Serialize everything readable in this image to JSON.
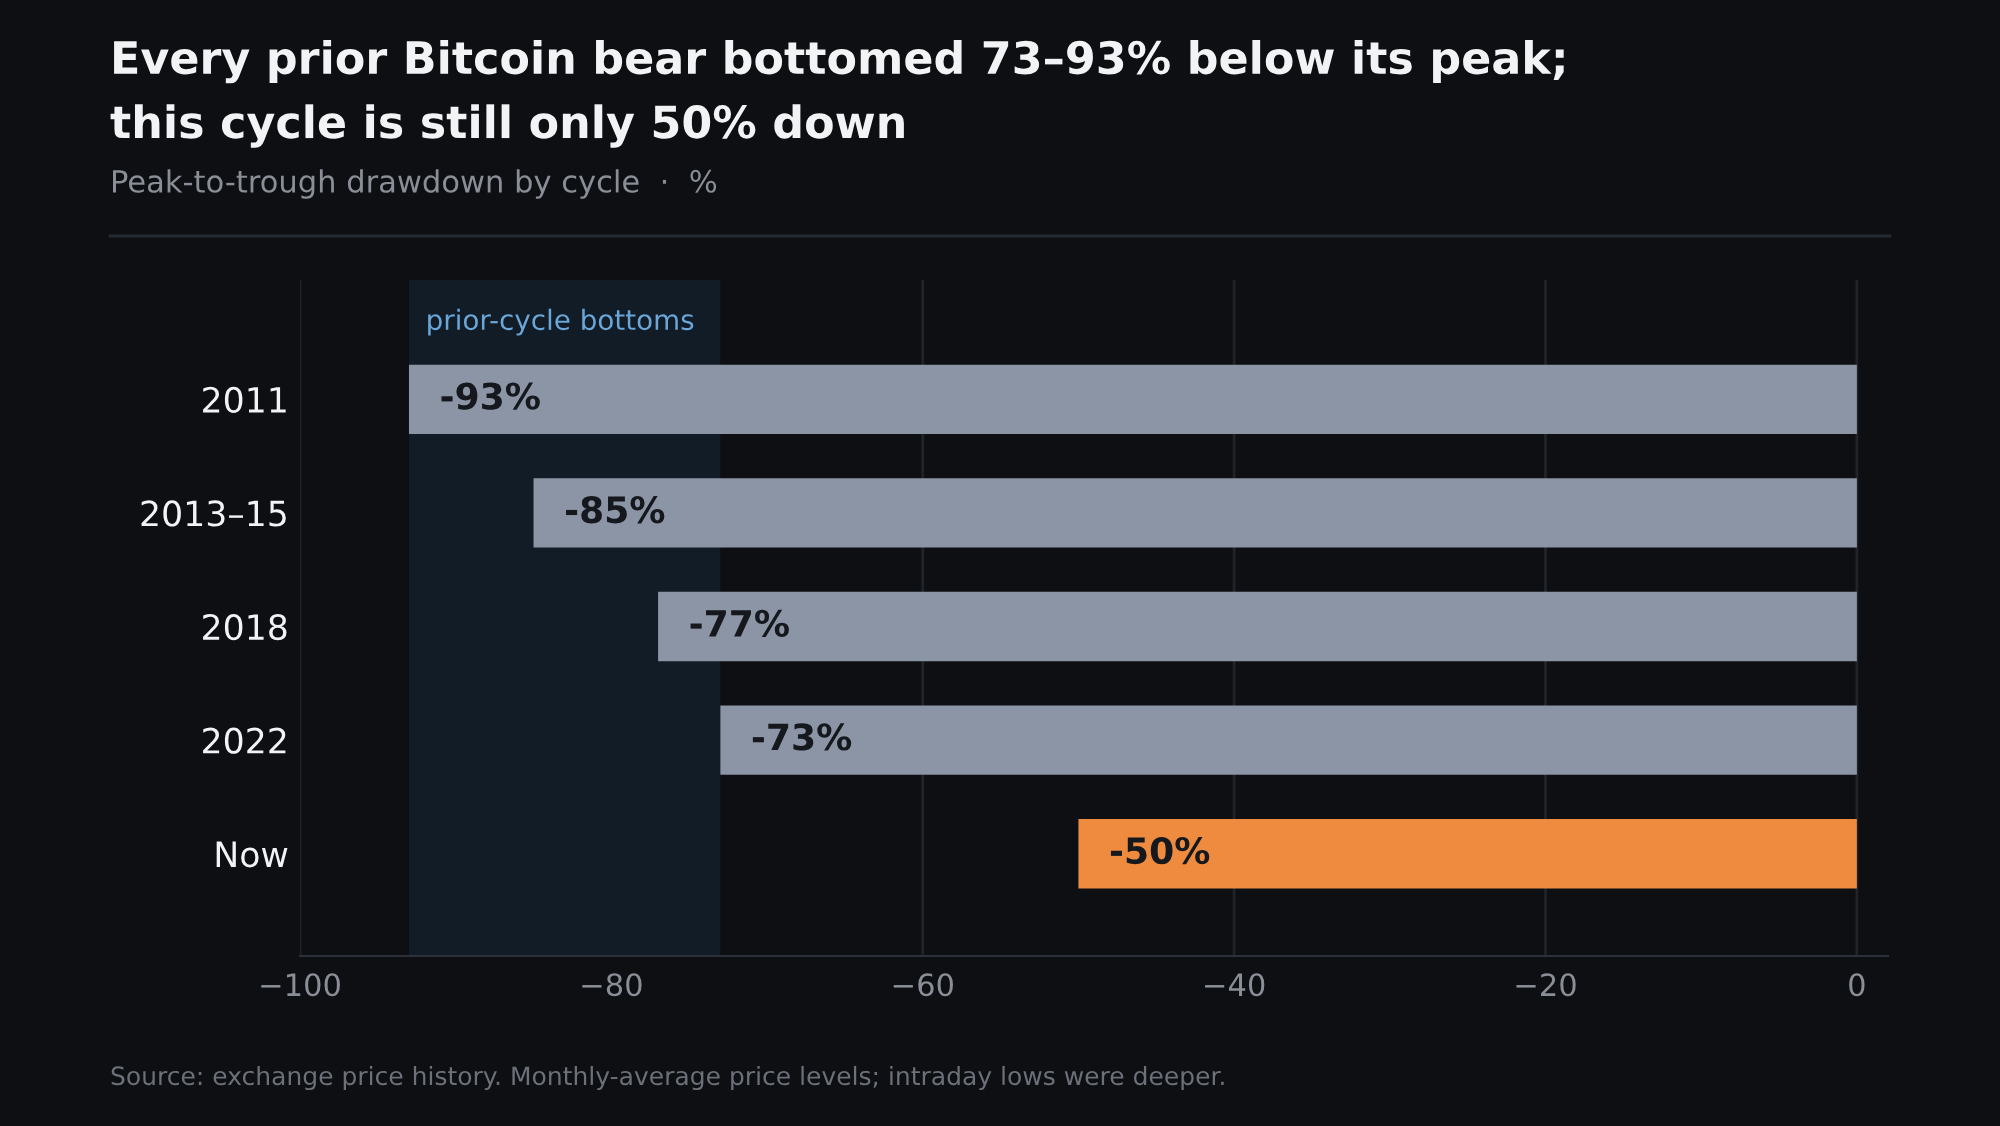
{
  "chart_data": {
    "type": "bar",
    "orientation": "horizontal",
    "title": "Every prior Bitcoin bear bottomed 73–93% below its peak;\nthis cycle is still only 50% down",
    "subtitle": "Peak-to-trough drawdown by cycle  ·  %",
    "categories": [
      "2011",
      "2013–15",
      "2018",
      "2022",
      "Now"
    ],
    "values": [
      -93,
      -85,
      -77,
      -73,
      -50
    ],
    "colors": [
      "#8b95a5",
      "#8b95a5",
      "#8b95a5",
      "#8b95a5",
      "#ef8b3f"
    ],
    "value_labels": [
      "-93%",
      "-85%",
      "-77%",
      "-73%",
      "-50%"
    ],
    "xlim": [
      -100,
      2
    ],
    "xticks": [
      {
        "value": -100,
        "label": "−100"
      },
      {
        "value": -80,
        "label": "−80"
      },
      {
        "value": -60,
        "label": "−60"
      },
      {
        "value": -40,
        "label": "−40"
      },
      {
        "value": -20,
        "label": "−20"
      },
      0
    ],
    "grid": "x",
    "bands": [
      {
        "axis": "x",
        "from": -93,
        "to": -73,
        "label": "prior-cycle bottoms",
        "color": "#111c26"
      }
    ],
    "annotations": [
      "Source: exchange price history. Monthly-average price levels; intraday lows were deeper."
    ]
  }
}
